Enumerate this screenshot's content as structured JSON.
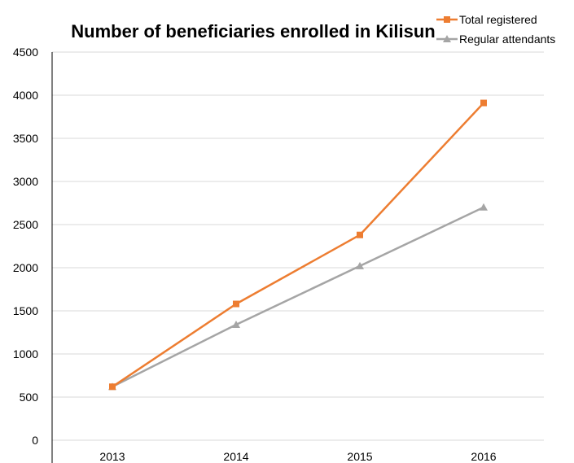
{
  "chart_data": {
    "type": "line",
    "title": "Number of beneficiaries enrolled in Kilisun",
    "xlabel": "",
    "ylabel": "",
    "categories": [
      "2013",
      "2014",
      "2015",
      "2016"
    ],
    "ylim": [
      0,
      4500
    ],
    "yticks": [
      0,
      500,
      1000,
      1500,
      2000,
      2500,
      3000,
      3500,
      4000,
      4500
    ],
    "grid": true,
    "legend_position": "top-right",
    "series": [
      {
        "name": "Total registered",
        "values": [
          620,
          1580,
          2380,
          3910
        ],
        "color": "#ed7d31",
        "marker": "square"
      },
      {
        "name": "Regular attendants",
        "values": [
          620,
          1340,
          2020,
          2700
        ],
        "color": "#a5a5a5",
        "marker": "triangle"
      }
    ]
  }
}
